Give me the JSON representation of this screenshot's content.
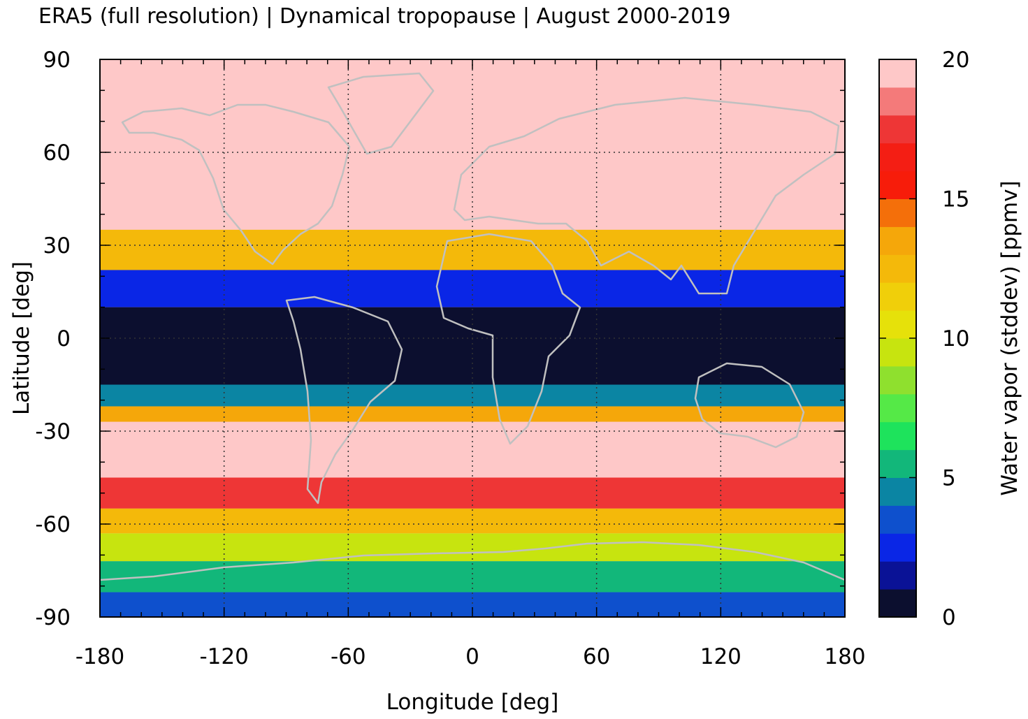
{
  "chart_data": {
    "type": "heatmap",
    "title": "ERA5 (full resolution) | Dynamical tropopause | August 2000-2019",
    "xlabel": "Longitude [deg]",
    "ylabel": "Latitude [deg]",
    "xlim": [
      -180,
      180
    ],
    "ylim": [
      -90,
      90
    ],
    "xticks": [
      -180,
      -120,
      -60,
      0,
      60,
      120,
      180
    ],
    "yticks": [
      90,
      60,
      30,
      0,
      -30,
      -60,
      -90
    ],
    "grid": true,
    "colorbar": {
      "label": "Water vapor (stddev) [ppmv]",
      "range": [
        0,
        20
      ],
      "ticks": [
        20,
        15,
        10,
        5,
        0
      ],
      "colors": [
        "#0c0f2f",
        "#0a1296",
        "#0a26e6",
        "#0e50cd",
        "#0b85a3",
        "#12b77a",
        "#1ee35c",
        "#55e947",
        "#8fe02e",
        "#c7e40f",
        "#e6e10a",
        "#f0cf0a",
        "#f4b90a",
        "#f5a70a",
        "#f46f0a",
        "#f71c0a",
        "#f41e14",
        "#ee3636",
        "#f47a7a",
        "#fec8c8"
      ]
    },
    "zonal_profile": [
      {
        "lat": [
          90,
          35
        ],
        "value": 20
      },
      {
        "lat": [
          35,
          22
        ],
        "value": 12
      },
      {
        "lat": [
          22,
          10
        ],
        "value": 2
      },
      {
        "lat": [
          10,
          -15
        ],
        "value": 0.5
      },
      {
        "lat": [
          -15,
          -22
        ],
        "value": 4
      },
      {
        "lat": [
          -22,
          -27
        ],
        "value": 13
      },
      {
        "lat": [
          -27,
          -45
        ],
        "value": 20
      },
      {
        "lat": [
          -45,
          -55
        ],
        "value": 17
      },
      {
        "lat": [
          -55,
          -63
        ],
        "value": 12
      },
      {
        "lat": [
          -63,
          -72
        ],
        "value": 9
      },
      {
        "lat": [
          -72,
          -82
        ],
        "value": 5
      },
      {
        "lat": [
          -82,
          -90
        ],
        "value": 3
      }
    ]
  }
}
